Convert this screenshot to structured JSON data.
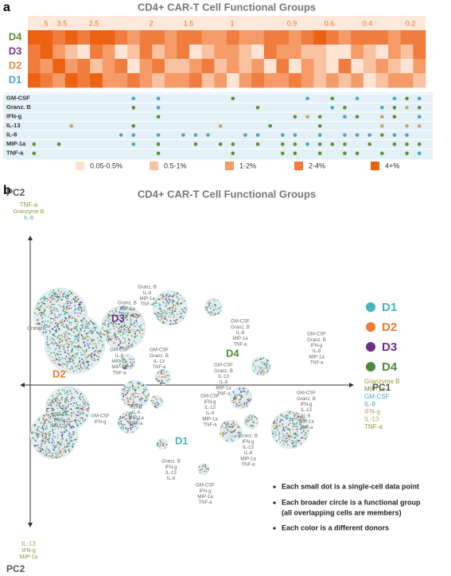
{
  "panel_a": {
    "label": "a",
    "title": "CD4+ CAR-T Cell Functional Groups",
    "scale_labels": [
      "5",
      "3.5",
      "2.5",
      "2",
      "1.5",
      "1",
      "0.9",
      "0.6",
      "0.4",
      "0.2"
    ],
    "donors": [
      {
        "name": "D4",
        "color": "#5a8f32"
      },
      {
        "name": "D3",
        "color": "#7b3b8c"
      },
      {
        "name": "D2",
        "color": "#e88a3a"
      },
      {
        "name": "D1",
        "color": "#4aa7c0"
      }
    ],
    "heatmap": [
      [
        4,
        4,
        3,
        4,
        3,
        4,
        4,
        3,
        2,
        3,
        3,
        2,
        3,
        3,
        2,
        2,
        3,
        2,
        2,
        3,
        3,
        2,
        3,
        4,
        3,
        2,
        3,
        3,
        3,
        2,
        3,
        3
      ],
      [
        3,
        4,
        2,
        1,
        0,
        3,
        2,
        0,
        1,
        3,
        1,
        2,
        3,
        0,
        1,
        2,
        2,
        1,
        0,
        3,
        2,
        2,
        1,
        1,
        0,
        0,
        2,
        1,
        0,
        2,
        1,
        3
      ],
      [
        3,
        2,
        4,
        2,
        3,
        1,
        2,
        3,
        0,
        2,
        3,
        1,
        1,
        2,
        3,
        1,
        2,
        1,
        2,
        0,
        3,
        0,
        2,
        1,
        0,
        3,
        0,
        1,
        2,
        1,
        0,
        2
      ],
      [
        4,
        3,
        2,
        4,
        3,
        4,
        2,
        2,
        3,
        2,
        1,
        2,
        2,
        3,
        1,
        2,
        0,
        2,
        3,
        2,
        2,
        3,
        2,
        1,
        2,
        1,
        2,
        0,
        1,
        2,
        2,
        1
      ]
    ],
    "level_colors": [
      "#fde4d4",
      "#f9c2a0",
      "#f59b68",
      "#f07c3e",
      "#ec6212"
    ],
    "cytokines": [
      "GM-CSF",
      "Granz. B",
      "IFN-g",
      "IL-13",
      "IL-8",
      "MIP-1a",
      "TNF-a"
    ],
    "dot_colors": [
      "#4aa7b8",
      "#5a8f32",
      "#c7a46a"
    ],
    "dots": [
      [
        0,
        0,
        0,
        0,
        0,
        0,
        0,
        0,
        1,
        0,
        1,
        0,
        0,
        0,
        0,
        0,
        2,
        0,
        0,
        0,
        0,
        0,
        1,
        0,
        2,
        0,
        1,
        0,
        0,
        1,
        2,
        1
      ],
      [
        0,
        0,
        0,
        0,
        0,
        0,
        0,
        0,
        2,
        0,
        1,
        0,
        0,
        0,
        0,
        0,
        0,
        0,
        2,
        0,
        0,
        0,
        0,
        0,
        1,
        2,
        0,
        0,
        1,
        2,
        3,
        2
      ],
      [
        0,
        0,
        0,
        0,
        0,
        0,
        0,
        0,
        0,
        0,
        2,
        0,
        0,
        0,
        0,
        0,
        0,
        0,
        0,
        0,
        0,
        2,
        3,
        2,
        0,
        1,
        2,
        0,
        3,
        2,
        0,
        1
      ],
      [
        0,
        0,
        0,
        3,
        0,
        0,
        0,
        0,
        2,
        0,
        0,
        0,
        0,
        0,
        0,
        3,
        0,
        0,
        0,
        2,
        0,
        0,
        0,
        2,
        0,
        0,
        0,
        0,
        3,
        0,
        3,
        3
      ],
      [
        0,
        0,
        0,
        0,
        0,
        0,
        0,
        1,
        1,
        0,
        1,
        0,
        1,
        1,
        1,
        0,
        0,
        1,
        1,
        0,
        1,
        1,
        0,
        1,
        0,
        1,
        1,
        1,
        2,
        1,
        1,
        0
      ],
      [
        2,
        0,
        2,
        0,
        0,
        0,
        0,
        0,
        1,
        0,
        2,
        0,
        0,
        2,
        0,
        2,
        2,
        0,
        2,
        0,
        2,
        2,
        1,
        2,
        2,
        2,
        0,
        2,
        0,
        2,
        2,
        2
      ],
      [
        2,
        0,
        0,
        0,
        0,
        0,
        0,
        0,
        0,
        0,
        2,
        0,
        0,
        0,
        0,
        0,
        2,
        0,
        0,
        0,
        2,
        2,
        0,
        2,
        0,
        2,
        2,
        0,
        2,
        0,
        2,
        1
      ]
    ],
    "legend": [
      "0.05-0.5%",
      "0.5-1%",
      "1-2%",
      "2-4%",
      "4+%"
    ]
  },
  "panel_b": {
    "label": "b",
    "title": "CD4+ CAR-T Cell Functional Groups",
    "y_axis": "PC2",
    "x_axis": "PC1",
    "pc2_top": [
      {
        "text": "TNF-a",
        "color": "#8a9a3a"
      },
      {
        "text": "Granzyme B",
        "color": "#8a9a3a"
      },
      {
        "text": "IL-8",
        "color": "#4aa7b8"
      }
    ],
    "pc2_bottom": [
      {
        "text": "IL-13",
        "color": "#b8a060"
      },
      {
        "text": "IFN-g",
        "color": "#8a9a3a"
      },
      {
        "text": "MIP-1a",
        "color": "#8a9a3a"
      }
    ],
    "pc1_right": [
      {
        "text": "Granzyme B",
        "color": "#9a9a3a"
      },
      {
        "text": "MIP-1a",
        "color": "#6a8a3a"
      },
      {
        "text": "GM-CSF",
        "color": "#4aa7b8"
      },
      {
        "text": "IL-8",
        "color": "#4aa7b8"
      },
      {
        "text": "IFN-g",
        "color": "#b8a060"
      },
      {
        "text": "IL-13",
        "color": "#b8a060"
      },
      {
        "text": "TNF-a",
        "color": "#8a9a3a"
      }
    ],
    "donors": [
      {
        "name": "D1",
        "color": "#45b5bd"
      },
      {
        "name": "D2",
        "color": "#ec7b34"
      },
      {
        "name": "D3",
        "color": "#6a2f86"
      },
      {
        "name": "D4",
        "color": "#4e8a3a"
      }
    ],
    "annotations": [
      [
        "Granz. B",
        "IL-8",
        "MIP-1a",
        "TNF-a"
      ],
      [
        "Granz. B",
        "MIP-1a",
        "TNF-a"
      ],
      [
        "Granz. B"
      ],
      [
        "GM-CSF",
        "Granz. B",
        "IL-8",
        "MIP-1a",
        "TNF-a"
      ],
      [
        "GM-CSF",
        "Granz. B",
        "IFN-g",
        "IL-8",
        "MIP-1a",
        "TNF-a"
      ],
      [
        "GM-CSF",
        "IL-8",
        "MIP-1a",
        "MIP-1a",
        "TNF-a"
      ],
      [
        "GM-CSF",
        "Granz. B",
        "IL-13",
        "TNF-a"
      ],
      [
        "GM-CSF",
        "Granz. B",
        "IL-13",
        "IL-8",
        "MIP-1a",
        "TNF-a"
      ],
      [
        "MIP-1a",
        "IFN-g",
        "GM-CSF"
      ],
      [
        "IFN-g",
        "IL-8",
        "MIP-1a",
        "TNF-a"
      ],
      [
        "IL-13"
      ],
      [
        "GM-CSF",
        "IFN-g"
      ],
      [
        "GM-CSF",
        "IFN-g",
        "IL-13",
        "IL-8",
        "MIP-1a",
        "TNF-a"
      ],
      [
        "GM-CSF",
        "Granz. B",
        "IFN-g",
        "IL-13",
        "IL-8",
        "MIP-1a",
        "TNF-a"
      ],
      [
        "Granz. B",
        "IFN-g",
        "IL-13",
        "IL-8",
        "MIP-1a",
        "TNF-a"
      ],
      [
        "Granz. B",
        "IFN-g",
        "IL-13",
        "IL-8"
      ],
      [
        "GM-CSF",
        "IFN-g",
        "MIP-1a",
        "TNF-a"
      ]
    ],
    "notes": [
      "Each small dot is a single-cell data point",
      "Each broader circle is a functional group",
      "(all overlapping cells are members)",
      "Each color is a different donors"
    ]
  }
}
